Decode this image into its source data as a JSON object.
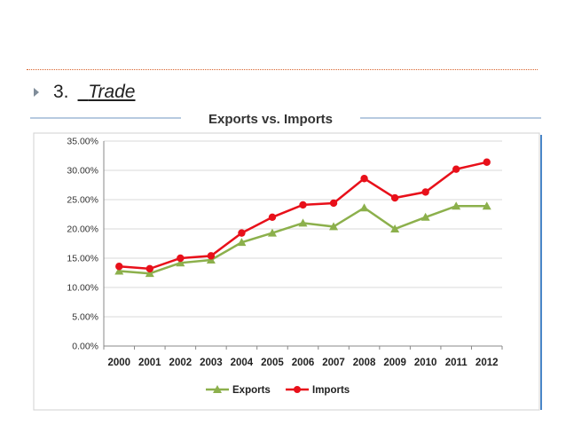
{
  "slide": {
    "bullet_number": "3.",
    "topic": "Trade"
  },
  "colors": {
    "exports": "#8cb04c",
    "imports": "#e8101a",
    "rule_dots": "#d9622b",
    "accent_bar": "#4a86c8"
  },
  "chart_data": {
    "type": "line",
    "title": "Exports vs. Imports",
    "xlabel": "",
    "ylabel": "",
    "categories": [
      "2000",
      "2001",
      "2002",
      "2003",
      "2004",
      "2005",
      "2006",
      "2007",
      "2008",
      "2009",
      "2010",
      "2011",
      "2012"
    ],
    "ylim": [
      0,
      35
    ],
    "yticks": [
      "0.00%",
      "5.00%",
      "10.00%",
      "15.00%",
      "20.00%",
      "25.00%",
      "30.00%",
      "35.00%"
    ],
    "grid": true,
    "legend_position": "bottom",
    "series": [
      {
        "name": "Exports",
        "marker": "triangle",
        "values": [
          12.8,
          12.4,
          14.2,
          14.7,
          17.7,
          19.3,
          21.0,
          20.4,
          23.6,
          20.0,
          22.0,
          23.9,
          23.9
        ]
      },
      {
        "name": "Imports",
        "marker": "circle",
        "values": [
          13.6,
          13.2,
          15.0,
          15.4,
          19.3,
          22.0,
          24.1,
          24.4,
          28.6,
          25.3,
          26.3,
          30.2,
          31.4
        ]
      }
    ]
  }
}
